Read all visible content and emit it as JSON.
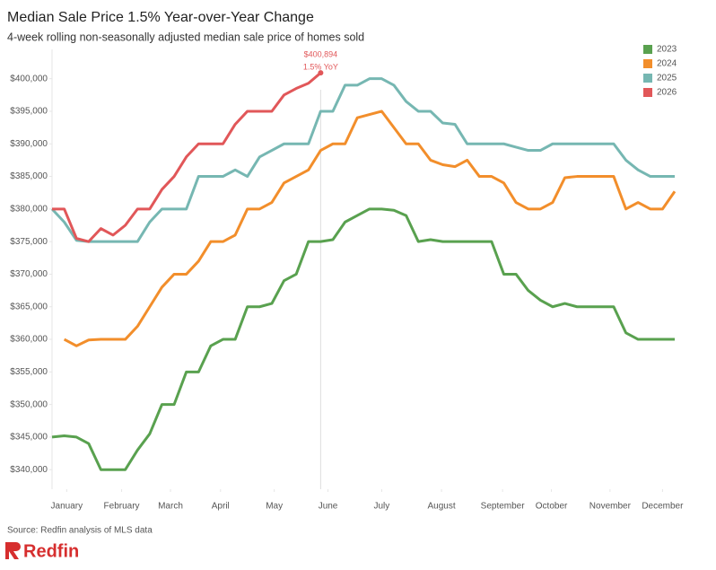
{
  "chart_data": {
    "type": "line",
    "title": "Median Sale Price 1.5% Year-over-Year Change",
    "subtitle": "4-week rolling non-seasonally adjusted median sale price of homes sold",
    "source": "Source: Redfin analysis of MLS data",
    "logo": "Redfin",
    "annotations": [
      "$400,894",
      "1.5% YoY"
    ],
    "x": [
      0,
      1,
      2,
      3,
      4,
      5,
      6,
      7,
      8,
      9,
      10,
      11,
      12,
      13,
      14,
      15,
      16,
      17,
      18,
      19,
      20,
      21,
      22,
      23,
      24,
      25,
      26,
      27,
      28,
      29,
      30,
      31,
      32,
      33,
      34,
      35,
      36,
      37,
      38,
      39,
      40,
      41,
      42,
      43,
      44,
      45,
      46,
      47,
      48,
      49,
      50,
      51
    ],
    "xlim": [
      0,
      51
    ],
    "xticks": [
      {
        "value": 1.2,
        "label": "January"
      },
      {
        "value": 5.7,
        "label": "February"
      },
      {
        "value": 9.7,
        "label": "March"
      },
      {
        "value": 13.8,
        "label": "April"
      },
      {
        "value": 18.2,
        "label": "May"
      },
      {
        "value": 22.6,
        "label": "June"
      },
      {
        "value": 27,
        "label": "July"
      },
      {
        "value": 31.9,
        "label": "August"
      },
      {
        "value": 36.9,
        "label": "September"
      },
      {
        "value": 40.9,
        "label": "October"
      },
      {
        "value": 45.7,
        "label": "November"
      },
      {
        "value": 50,
        "label": "December"
      }
    ],
    "ylim": [
      337000,
      404500
    ],
    "yticks": [
      {
        "value": 340000,
        "label": "$340,000"
      },
      {
        "value": 345000,
        "label": "$345,000"
      },
      {
        "value": 350000,
        "label": "$350,000"
      },
      {
        "value": 355000,
        "label": "$355,000"
      },
      {
        "value": 360000,
        "label": "$360,000"
      },
      {
        "value": 365000,
        "label": "$365,000"
      },
      {
        "value": 370000,
        "label": "$370,000"
      },
      {
        "value": 375000,
        "label": "$375,000"
      },
      {
        "value": 380000,
        "label": "$380,000"
      },
      {
        "value": 385000,
        "label": "$385,000"
      },
      {
        "value": 390000,
        "label": "$390,000"
      },
      {
        "value": 395000,
        "label": "$395,000"
      },
      {
        "value": 400000,
        "label": "$400,000"
      }
    ],
    "legend": "top-right",
    "series": [
      {
        "name": "2023",
        "color": "#59a14f",
        "values": [
          345000,
          345200,
          345000,
          344000,
          340000,
          340000,
          340000,
          343000,
          345500,
          350000,
          350000,
          355000,
          355000,
          359000,
          360000,
          360000,
          365000,
          365000,
          365500,
          369000,
          370000,
          375000,
          375000,
          375300,
          378000,
          379000,
          380000,
          380000,
          379800,
          379000,
          375000,
          375300,
          375000,
          375000,
          375000,
          375000,
          375000,
          370000,
          370000,
          367500,
          366000,
          365000,
          365500,
          365000,
          365000,
          365000,
          365000,
          361000,
          360000,
          360000,
          360000,
          360000
        ]
      },
      {
        "name": "2024",
        "color": "#f28e2b",
        "values": [
          null,
          360000,
          359000,
          359900,
          360000,
          360000,
          360000,
          362000,
          365000,
          368000,
          370000,
          370000,
          372000,
          375000,
          375000,
          376000,
          380000,
          380000,
          381000,
          384000,
          385000,
          386000,
          389000,
          390000,
          390000,
          394000,
          394500,
          395000,
          392500,
          390000,
          390000,
          387500,
          386800,
          386500,
          387500,
          385000,
          385000,
          384000,
          381000,
          380000,
          380000,
          381000,
          384800,
          385000,
          385000,
          385000,
          385000,
          380000,
          381000,
          380000,
          380000,
          382700
        ]
      },
      {
        "name": "2025",
        "color": "#76b7b2",
        "values": [
          380000,
          378000,
          375200,
          375000,
          375000,
          375000,
          375000,
          375000,
          378000,
          380000,
          380000,
          380000,
          385000,
          385000,
          385000,
          386000,
          385000,
          388000,
          389000,
          390000,
          390000,
          390000,
          395000,
          395000,
          399000,
          399000,
          400000,
          400000,
          399000,
          396500,
          395000,
          395000,
          393200,
          393000,
          390000,
          390000,
          390000,
          390000,
          389500,
          389000,
          389000,
          390000,
          390000,
          390000,
          390000,
          390000,
          390000,
          387500,
          386000,
          385000,
          385000,
          385000
        ]
      },
      {
        "name": "2026",
        "color": "#e15759",
        "values": [
          380000,
          380000,
          375500,
          375000,
          377000,
          376000,
          377500,
          380000,
          380000,
          383000,
          385000,
          388000,
          390000,
          390000,
          390000,
          393000,
          395000,
          395000,
          395000,
          397500,
          398500,
          399300,
          400894,
          null,
          null,
          null,
          null,
          null,
          null,
          null,
          null,
          null,
          null,
          null,
          null,
          null,
          null,
          null,
          null,
          null,
          null,
          null,
          null,
          null,
          null,
          null,
          null,
          null,
          null,
          null,
          null,
          null
        ]
      }
    ]
  }
}
